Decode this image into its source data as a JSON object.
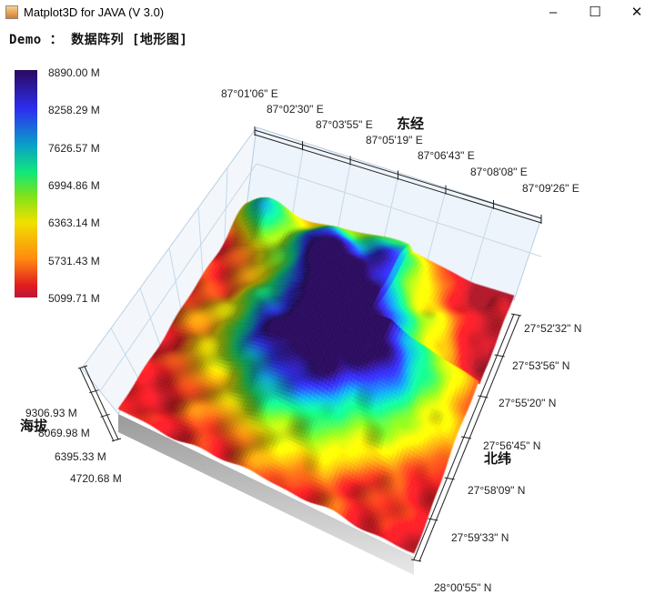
{
  "window": {
    "title": "Matplot3D for JAVA (V 3.0)",
    "minimize": "–",
    "maximize": "☐",
    "close": "✕",
    "icon": "java-icon"
  },
  "header": {
    "title": "Demo ： 数据阵列 [地形图]"
  },
  "chart_data": {
    "type": "surface",
    "title": "Demo ： 数据阵列 [地形图]",
    "colormap": "jet",
    "colorbar": {
      "ticks": [
        "8890.00 M",
        "8258.29 M",
        "7626.57 M",
        "6994.86 M",
        "6363.14 M",
        "5731.43 M",
        "5099.71 M"
      ],
      "range": [
        5099.71,
        8890.0
      ]
    },
    "x_axis": {
      "label": "东经",
      "ticks": [
        "87°01'06\" E",
        "87°02'30\" E",
        "87°03'55\" E",
        "87°05'19\" E",
        "87°06'43\" E",
        "87°08'08\" E",
        "87°09'26\" E"
      ]
    },
    "y_axis": {
      "label": "北纬",
      "ticks": [
        "27°52'32\" N",
        "27°53'56\" N",
        "27°55'20\" N",
        "27°56'45\" N",
        "27°58'09\" N",
        "27°59'33\" N",
        "28°00'55\" N"
      ]
    },
    "z_axis": {
      "label": "海拔",
      "ticks": [
        "9306.93 M",
        "8069.98 M",
        "6395.33 M",
        "4720.68 M"
      ]
    },
    "grid": true
  }
}
